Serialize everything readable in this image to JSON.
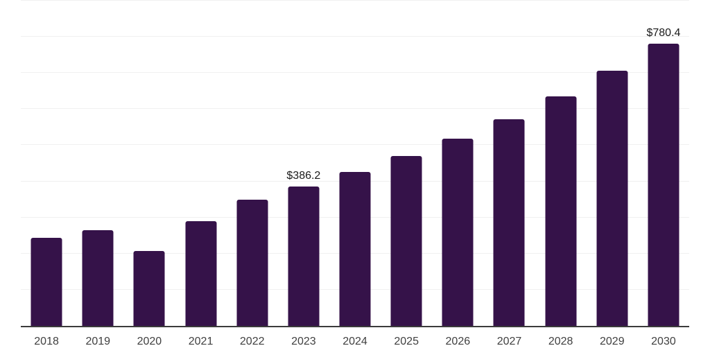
{
  "chart_data": {
    "type": "bar",
    "title": "",
    "xlabel": "",
    "ylabel": "",
    "categories": [
      "2018",
      "2019",
      "2020",
      "2021",
      "2022",
      "2023",
      "2024",
      "2025",
      "2026",
      "2027",
      "2028",
      "2029",
      "2030"
    ],
    "values": [
      243.7,
      264.8,
      207.3,
      289.8,
      349.3,
      386.2,
      426.0,
      470.2,
      518.2,
      571.9,
      635.2,
      706.2,
      780.4
    ],
    "data_labels": {
      "2023": "$386.2",
      "2030": "$780.4"
    },
    "ylim": [
      0,
      900
    ],
    "gridline_interval": 100,
    "grid": "horizontal-only",
    "y_tick_labels_visible": false,
    "legend_position": "none",
    "colors": {
      "bar": "#351249",
      "axis_line": "#3b3b3b",
      "gridline": "#f0f0f0",
      "tick_label": "#404040",
      "data_label": "#1a1a1a",
      "background": "#ffffff"
    }
  }
}
